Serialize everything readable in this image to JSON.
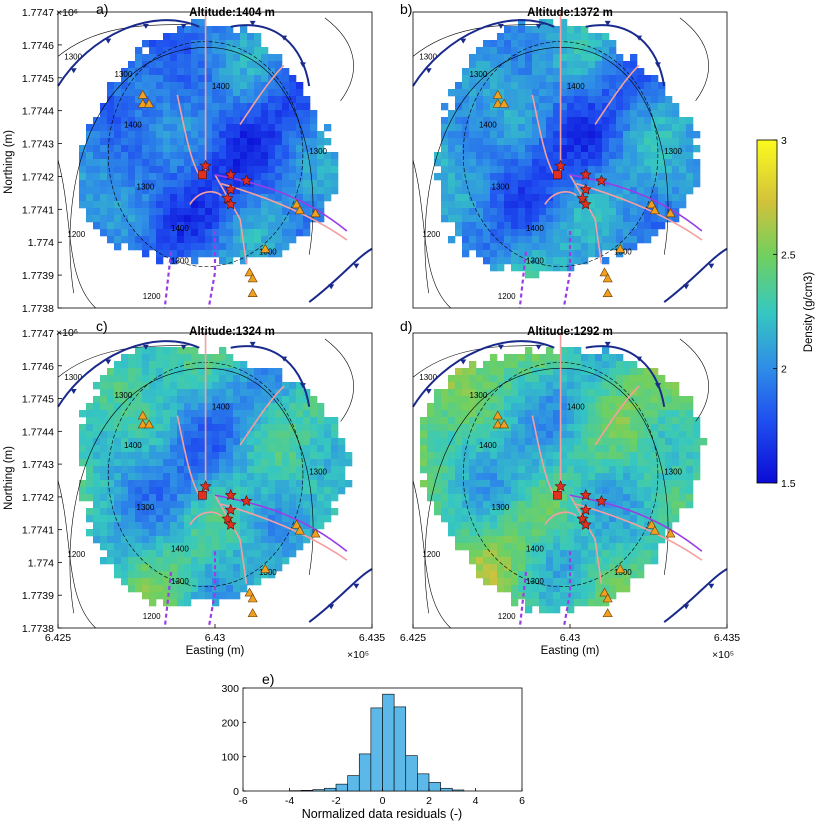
{
  "chart_data": [
    {
      "type": "heatmap",
      "panel_label": "a)",
      "title": "Altitude:1404 m",
      "xlabel": "",
      "ylabel": "Northing (m)",
      "xlim": [
        642500,
        643500
      ],
      "ylim": [
        1773800,
        1774700
      ],
      "x_ticks": [],
      "x_scale_label": "",
      "y_ticks": [
        "1.7747",
        "1.7746",
        "1.7745",
        "1.7744",
        "1.7743",
        "1.7742",
        "1.7741",
        "1.774",
        "1.7739",
        "1.7738"
      ],
      "y_scale_label": "×10⁶",
      "contour_labels": [
        "1300",
        "1300",
        "1400",
        "1400",
        "1300",
        "1300",
        "1400",
        "1200",
        "1300",
        "1300",
        "1200"
      ],
      "density_range": [
        1.5,
        3.0
      ],
      "mean_density": 1.8
    },
    {
      "type": "heatmap",
      "panel_label": "b)",
      "title": "Altitude:1372 m",
      "xlabel": "",
      "ylabel": "",
      "xlim": [
        642500,
        643500
      ],
      "ylim": [
        1773800,
        1774700
      ],
      "x_ticks": [],
      "x_scale_label": "",
      "y_ticks": [],
      "y_scale_label": "",
      "contour_labels": [
        "1300",
        "1300",
        "1400",
        "1400",
        "1300",
        "1300",
        "1400",
        "1200",
        "1300",
        "1300",
        "1200"
      ],
      "density_range": [
        1.5,
        3.0
      ],
      "mean_density": 1.85
    },
    {
      "type": "heatmap",
      "panel_label": "c)",
      "title": "Altitude:1324 m",
      "xlabel": "Easting (m)",
      "ylabel": "Northing (m)",
      "xlim": [
        642500,
        643500
      ],
      "ylim": [
        1773800,
        1774700
      ],
      "x_ticks": [
        "6.425",
        "6.43",
        "6.435"
      ],
      "x_scale_label": "×10⁵",
      "y_ticks": [
        "1.7747",
        "1.7746",
        "1.7745",
        "1.7744",
        "1.7743",
        "1.7742",
        "1.7741",
        "1.774",
        "1.7739",
        "1.7738"
      ],
      "y_scale_label": "×10⁶",
      "contour_labels": [
        "1300",
        "1300",
        "1400",
        "1400",
        "1300",
        "1300",
        "1400",
        "1200",
        "1300",
        "1300",
        "1200"
      ],
      "density_range": [
        1.5,
        3.0
      ],
      "mean_density": 2.0
    },
    {
      "type": "heatmap",
      "panel_label": "d)",
      "title": "Altitude:1292 m",
      "xlabel": "Easting (m)",
      "ylabel": "",
      "xlim": [
        642500,
        643500
      ],
      "ylim": [
        1773800,
        1774700
      ],
      "x_ticks": [
        "6.425",
        "6.43",
        "6.435"
      ],
      "x_scale_label": "×10⁵",
      "y_ticks": [],
      "y_scale_label": "",
      "contour_labels": [
        "1300",
        "1300",
        "1400",
        "1400",
        "1300",
        "1300",
        "1400",
        "1200",
        "1300",
        "1300",
        "1200"
      ],
      "density_range": [
        1.5,
        3.0
      ],
      "mean_density": 2.1
    },
    {
      "type": "bar",
      "panel_label": "e)",
      "title": "",
      "xlabel": "Normalized data residuals (-)",
      "ylabel": "",
      "xlim": [
        -6,
        6
      ],
      "ylim": [
        0,
        300
      ],
      "x_ticks": [
        "-6",
        "-4",
        "-2",
        "0",
        "2",
        "4",
        "6"
      ],
      "y_ticks": [
        "300",
        "200",
        "100",
        "0"
      ],
      "bin_edges": [
        -4.0,
        -3.5,
        -3.0,
        -2.5,
        -2.0,
        -1.5,
        -1.0,
        -0.5,
        0.0,
        0.5,
        1.0,
        1.5,
        2.0,
        2.5,
        3.0,
        3.5
      ],
      "values": [
        1,
        2,
        4,
        8,
        20,
        45,
        108,
        242,
        282,
        245,
        103,
        50,
        25,
        8,
        3
      ],
      "bar_color": "#5bb8e8"
    }
  ],
  "colorbar": {
    "label": "Density (g/cm3)",
    "ticks": [
      "3",
      "2.5",
      "2",
      "1.5"
    ],
    "range": [
      1.5,
      3.0
    ]
  },
  "colors": {
    "fault": "#1a2a8c",
    "fissure": "#f4a0a0",
    "dashed_line": "#9b3de6",
    "triangle": "#f0a020",
    "star": "#e03020",
    "contour": "#000000"
  },
  "icons": [
    "triangle-marker-icon",
    "star-marker-icon",
    "square-marker-icon",
    "fault-tooth-icon"
  ]
}
